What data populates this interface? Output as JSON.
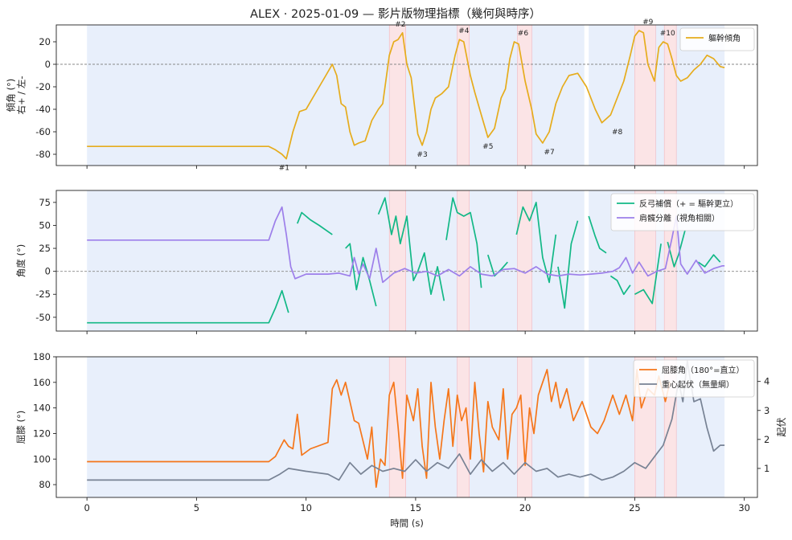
{
  "chart_data": [
    {
      "type": "line",
      "title": "ALEX · 2025-01-09 — 影片版物理指標（幾何與時序）",
      "ylabel": "傾角 (°)\n右+ / 左-",
      "xlim": [
        -1.4,
        30.6
      ],
      "ylim": [
        -90,
        35
      ],
      "xticks": [
        0,
        5,
        10,
        15,
        20,
        25,
        30
      ],
      "yticks": [
        -80,
        -60,
        -40,
        -20,
        0,
        20
      ],
      "ytick_labels": [
        "-80",
        "-60",
        "-40",
        "-20",
        "0",
        "20"
      ],
      "grid": false,
      "legend": "top-right",
      "zero_line": 0,
      "blue_bands": [
        [
          0,
          22.7
        ],
        [
          22.9,
          29.1
        ]
      ],
      "red_bands": [
        [
          13.8,
          14.55
        ],
        [
          16.9,
          17.45
        ],
        [
          19.65,
          20.3
        ],
        [
          25.0,
          25.95
        ],
        [
          26.35,
          26.9
        ]
      ],
      "series": [
        {
          "name": "軀幹傾角",
          "color": "#e6ac1c",
          "x": [
            0,
            8.3,
            8.6,
            8.9,
            9.1,
            9.4,
            9.7,
            10.0,
            10.3,
            10.6,
            10.9,
            11.2,
            11.4,
            11.6,
            11.8,
            12.0,
            12.2,
            12.4,
            12.7,
            13.0,
            13.3,
            13.5,
            13.8,
            14.0,
            14.2,
            14.4,
            14.6,
            14.8,
            15.1,
            15.3,
            15.5,
            15.7,
            15.9,
            16.2,
            16.5,
            16.8,
            17.0,
            17.2,
            17.5,
            17.7,
            18.0,
            18.3,
            18.6,
            18.9,
            19.1,
            19.3,
            19.5,
            19.7,
            20.0,
            20.3,
            20.5,
            20.8,
            21.1,
            21.4,
            21.7,
            22.0,
            22.4,
            22.8,
            23.2,
            23.5,
            23.9,
            24.2,
            24.5,
            24.8,
            25.0,
            25.2,
            25.4,
            25.6,
            25.9,
            26.1,
            26.3,
            26.5,
            26.7,
            26.9,
            27.1,
            27.4,
            27.7,
            28.0,
            28.3,
            28.6,
            28.9,
            29.1
          ],
          "y": [
            -73,
            -73,
            -76,
            -80,
            -84,
            -60,
            -42,
            -40,
            -30,
            -20,
            -10,
            0,
            -10,
            -35,
            -38,
            -60,
            -72,
            -70,
            -68,
            -50,
            -40,
            -35,
            8,
            20,
            22,
            28,
            0,
            -12,
            -62,
            -72,
            -60,
            -40,
            -30,
            -26,
            -20,
            8,
            22,
            20,
            -10,
            -25,
            -45,
            -65,
            -57,
            -30,
            -22,
            5,
            20,
            18,
            -15,
            -40,
            -62,
            -70,
            -60,
            -35,
            -20,
            -10,
            -8,
            -20,
            -40,
            -52,
            -45,
            -30,
            -15,
            8,
            25,
            30,
            28,
            0,
            -15,
            15,
            20,
            18,
            5,
            -10,
            -15,
            -12,
            -5,
            0,
            8,
            5,
            -2,
            -3
          ]
        }
      ],
      "annotations": [
        {
          "text": "#1",
          "x": 9.0,
          "y": -84
        },
        {
          "text": "#2",
          "x": 14.3,
          "y": 28
        },
        {
          "text": "#3",
          "x": 15.3,
          "y": -72
        },
        {
          "text": "#4",
          "x": 17.2,
          "y": 22
        },
        {
          "text": "#5",
          "x": 18.3,
          "y": -65
        },
        {
          "text": "#6",
          "x": 19.9,
          "y": 20
        },
        {
          "text": "#7",
          "x": 21.1,
          "y": -70
        },
        {
          "text": "#8",
          "x": 24.2,
          "y": -52
        },
        {
          "text": "#9",
          "x": 25.6,
          "y": 30
        },
        {
          "text": "#10",
          "x": 26.5,
          "y": 20
        }
      ]
    },
    {
      "type": "line",
      "ylabel": "角度 (°)",
      "xlim": [
        -1.4,
        30.6
      ],
      "ylim": [
        -65,
        88
      ],
      "xticks": [
        0,
        5,
        10,
        15,
        20,
        25,
        30
      ],
      "yticks": [
        -50,
        -25,
        0,
        25,
        50,
        75
      ],
      "ytick_labels": [
        "-50",
        "-25",
        "0",
        "25",
        "50",
        "75"
      ],
      "grid": false,
      "legend": "top-right",
      "zero_line": 0,
      "blue_bands": [
        [
          0,
          22.7
        ],
        [
          22.9,
          29.1
        ]
      ],
      "red_bands": [
        [
          13.8,
          14.55
        ],
        [
          16.9,
          17.45
        ],
        [
          19.65,
          20.3
        ],
        [
          25.0,
          25.95
        ],
        [
          26.35,
          26.9
        ]
      ],
      "series": [
        {
          "name": "反弓補償（+ = 驅幹更立）",
          "color": "#12b886",
          "segments": [
            {
              "x": [
                0,
                8.3,
                8.6,
                8.9,
                9.2
              ],
              "y": [
                -56,
                -56,
                -40,
                -21,
                -45
              ]
            },
            {
              "x": [
                9.6,
                9.8,
                10.2,
                10.6,
                11.2
              ],
              "y": [
                52,
                64,
                56,
                50,
                40
              ]
            },
            {
              "x": [
                11.8,
                12.0,
                12.3,
                12.6,
                12.9,
                13.2
              ],
              "y": [
                25,
                30,
                -20,
                15,
                -10,
                -38
              ]
            },
            {
              "x": [
                13.3,
                13.6,
                13.9,
                14.1,
                14.3,
                14.6,
                14.9,
                15.1,
                15.4,
                15.7,
                16.0,
                16.3
              ],
              "y": [
                62,
                80,
                40,
                60,
                30,
                60,
                -10,
                0,
                20,
                -25,
                5,
                -32
              ]
            },
            {
              "x": [
                16.4,
                16.7,
                16.9,
                17.2,
                17.5,
                17.8,
                18.0
              ],
              "y": [
                34,
                80,
                64,
                60,
                64,
                30,
                -18
              ]
            },
            {
              "x": [
                18.3,
                18.6,
                18.9,
                19.2
              ],
              "y": [
                18,
                -5,
                2,
                10
              ]
            },
            {
              "x": [
                19.6,
                19.9,
                20.2,
                20.5,
                20.8,
                21.1,
                21.4
              ],
              "y": [
                40,
                70,
                55,
                75,
                15,
                -12,
                40
              ]
            },
            {
              "x": [
                21.5,
                21.8,
                22.1,
                22.4
              ],
              "y": [
                5,
                -40,
                30,
                55
              ]
            },
            {
              "x": [
                22.9,
                23.2,
                23.4,
                23.7
              ],
              "y": [
                60,
                38,
                25,
                20
              ]
            },
            {
              "x": [
                23.9,
                24.2,
                24.5,
                24.8
              ],
              "y": [
                -5,
                -10,
                -25,
                -15
              ]
            },
            {
              "x": [
                25.0,
                25.4,
                25.8,
                26.2
              ],
              "y": [
                -25,
                -20,
                -35,
                30
              ]
            },
            {
              "x": [
                26.5,
                26.8,
                27.0,
                27.3
              ],
              "y": [
                32,
                5,
                18,
                45
              ]
            },
            {
              "x": [
                27.9,
                28.2,
                28.6,
                28.9
              ],
              "y": [
                10,
                5,
                18,
                10
              ]
            }
          ]
        },
        {
          "name": "肩髖分離（視角相關）",
          "color": "#9d7fea",
          "x": [
            0,
            8.3,
            8.6,
            8.9,
            9.1,
            9.3,
            9.5,
            10.0,
            11.0,
            11.5,
            12.0,
            12.2,
            12.4,
            12.6,
            12.9,
            13.2,
            13.5,
            14.0,
            14.5,
            15.0,
            15.5,
            16.0,
            16.5,
            17.0,
            17.5,
            18.0,
            18.5,
            19.0,
            19.5,
            20.0,
            20.5,
            21.0,
            21.5,
            22.0,
            22.5,
            23.0,
            23.5,
            24.0,
            24.3,
            24.6,
            24.9,
            25.2,
            25.6,
            26.0,
            26.4,
            26.7,
            26.9,
            27.1,
            27.4,
            27.8,
            28.2,
            28.6,
            29.0,
            29.1
          ],
          "y": [
            34,
            34,
            55,
            70,
            40,
            5,
            -8,
            -3,
            -3,
            -2,
            -5,
            15,
            -3,
            8,
            -8,
            25,
            -12,
            -2,
            3,
            -2,
            0,
            -5,
            2,
            -5,
            5,
            -3,
            -5,
            2,
            3,
            -2,
            5,
            -3,
            -5,
            -3,
            -4,
            -3,
            -2,
            0,
            4,
            15,
            -2,
            10,
            -5,
            0,
            3,
            36,
            60,
            8,
            -3,
            12,
            -2,
            3,
            6,
            6
          ]
        }
      ]
    },
    {
      "type": "line",
      "ylabel": "屈膝 (°)",
      "y2label": "起伏",
      "xlabel": "時間 (s)",
      "xlim": [
        -1.4,
        30.6
      ],
      "ylim": [
        70,
        180
      ],
      "y2lim": [
        0,
        4.85
      ],
      "xticks": [
        0,
        5,
        10,
        15,
        20,
        25,
        30
      ],
      "yticks": [
        80,
        100,
        120,
        140,
        160,
        180
      ],
      "ytick_labels": [
        "80",
        "100",
        "120",
        "140",
        "160",
        "180"
      ],
      "y2ticks": [
        1,
        2,
        3,
        4
      ],
      "y2tick_labels": [
        "1",
        "2",
        "3",
        "4"
      ],
      "grid": false,
      "legend": "top-right",
      "blue_bands": [
        [
          0,
          22.7
        ],
        [
          22.9,
          29.1
        ]
      ],
      "red_bands": [
        [
          13.8,
          14.55
        ],
        [
          16.9,
          17.45
        ],
        [
          19.65,
          20.3
        ],
        [
          25.0,
          25.95
        ],
        [
          26.35,
          26.9
        ]
      ],
      "series": [
        {
          "name": "屈膝角（180°=直立）",
          "color": "#f5761a",
          "axis": "left",
          "x": [
            0,
            8.3,
            8.6,
            9.0,
            9.2,
            9.4,
            9.6,
            9.8,
            10.2,
            11.0,
            11.2,
            11.4,
            11.6,
            11.8,
            12.0,
            12.2,
            12.4,
            12.8,
            13.0,
            13.2,
            13.4,
            13.6,
            13.8,
            14.0,
            14.2,
            14.4,
            14.6,
            14.9,
            15.1,
            15.3,
            15.5,
            15.7,
            15.9,
            16.1,
            16.3,
            16.5,
            16.7,
            16.9,
            17.1,
            17.3,
            17.5,
            17.7,
            17.9,
            18.1,
            18.3,
            18.5,
            18.8,
            19.0,
            19.2,
            19.4,
            19.6,
            19.8,
            20.0,
            20.2,
            20.4,
            20.6,
            20.8,
            21.0,
            21.2,
            21.4,
            21.6,
            21.9,
            22.2,
            22.6,
            23.0,
            23.3,
            23.6,
            24.0,
            24.3,
            24.6,
            24.9,
            25.1,
            25.3,
            25.6,
            25.9,
            26.1,
            26.4,
            26.6
          ],
          "y": [
            98,
            98,
            102,
            115,
            110,
            108,
            135,
            103,
            108,
            113,
            155,
            162,
            150,
            160,
            145,
            130,
            128,
            100,
            125,
            78,
            100,
            95,
            150,
            160,
            125,
            85,
            150,
            130,
            155,
            110,
            85,
            160,
            125,
            100,
            130,
            155,
            110,
            150,
            130,
            140,
            100,
            160,
            120,
            90,
            145,
            125,
            115,
            155,
            100,
            135,
            140,
            150,
            95,
            140,
            120,
            150,
            160,
            170,
            145,
            160,
            140,
            155,
            130,
            145,
            125,
            120,
            130,
            150,
            135,
            150,
            130,
            170,
            140,
            155,
            150,
            165,
            145,
            160
          ]
        },
        {
          "name": "重心起伏（無量綱）",
          "color": "#778294",
          "axis": "right",
          "x": [
            0,
            8.3,
            8.8,
            9.2,
            10.0,
            11.0,
            11.5,
            12.0,
            12.5,
            13.0,
            13.5,
            14.0,
            14.5,
            15.0,
            15.5,
            16.0,
            16.5,
            17.0,
            17.5,
            18.0,
            18.5,
            19.0,
            19.5,
            20.0,
            20.5,
            21.0,
            21.5,
            22.0,
            22.5,
            23.0,
            23.5,
            24.0,
            24.5,
            25.0,
            25.5,
            26.0,
            26.3,
            26.7,
            27.0,
            27.2,
            27.4,
            27.7,
            28.0,
            28.3,
            28.6,
            28.9,
            29.1
          ],
          "y": [
            0.6,
            0.6,
            0.8,
            1.0,
            0.9,
            0.8,
            0.6,
            1.2,
            0.8,
            1.1,
            0.9,
            1.0,
            0.9,
            1.3,
            0.9,
            1.2,
            1.0,
            1.5,
            0.8,
            1.3,
            0.9,
            1.2,
            0.8,
            1.2,
            0.9,
            1.0,
            0.7,
            0.8,
            0.7,
            0.8,
            0.6,
            0.7,
            0.9,
            1.2,
            1.0,
            1.5,
            1.8,
            2.7,
            4.0,
            3.3,
            4.7,
            3.3,
            3.4,
            2.4,
            1.6,
            1.8,
            1.8
          ]
        }
      ]
    }
  ]
}
